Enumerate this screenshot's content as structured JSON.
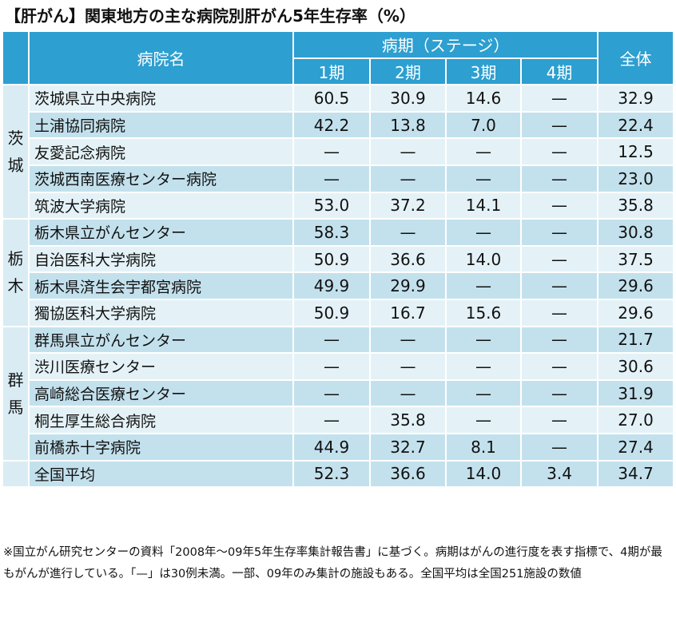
{
  "title": "【肝がん】関東地方の主な病院別肝がん5年生存率（%）",
  "header": {
    "hospital": "病院名",
    "stage_group": "病期（ステージ）",
    "stages": [
      "1期",
      "2期",
      "3期",
      "4期"
    ],
    "total": "全体"
  },
  "groups": [
    {
      "prefecture": [
        "茨",
        "城"
      ],
      "rows": [
        {
          "name": "茨城県立中央病院",
          "values": [
            "60.5",
            "30.9",
            "14.6",
            "—",
            "32.9"
          ]
        },
        {
          "name": "土浦協同病院",
          "values": [
            "42.2",
            "13.8",
            "7.0",
            "—",
            "22.4"
          ]
        },
        {
          "name": "友愛記念病院",
          "values": [
            "—",
            "—",
            "—",
            "—",
            "12.5"
          ]
        },
        {
          "name": "茨城西南医療センター病院",
          "values": [
            "—",
            "—",
            "—",
            "—",
            "23.0"
          ]
        },
        {
          "name": "筑波大学病院",
          "values": [
            "53.0",
            "37.2",
            "14.1",
            "—",
            "35.8"
          ]
        }
      ]
    },
    {
      "prefecture": [
        "栃",
        "木"
      ],
      "rows": [
        {
          "name": "栃木県立がんセンター",
          "values": [
            "58.3",
            "—",
            "—",
            "—",
            "30.8"
          ]
        },
        {
          "name": "自治医科大学病院",
          "values": [
            "50.9",
            "36.6",
            "14.0",
            "—",
            "37.5"
          ]
        },
        {
          "name": "栃木県済生会宇都宮病院",
          "values": [
            "49.9",
            "29.9",
            "—",
            "—",
            "29.6"
          ]
        },
        {
          "name": "獨協医科大学病院",
          "values": [
            "50.9",
            "16.7",
            "15.6",
            "—",
            "29.6"
          ]
        }
      ]
    },
    {
      "prefecture": [
        "群",
        "馬"
      ],
      "rows": [
        {
          "name": "群馬県立がんセンター",
          "values": [
            "—",
            "—",
            "—",
            "—",
            "21.7"
          ]
        },
        {
          "name": "渋川医療センター",
          "values": [
            "—",
            "—",
            "—",
            "—",
            "30.6"
          ]
        },
        {
          "name": "高崎総合医療センター",
          "values": [
            "—",
            "—",
            "—",
            "—",
            "31.9"
          ]
        },
        {
          "name": "桐生厚生総合病院",
          "values": [
            "—",
            "35.8",
            "—",
            "—",
            "27.0"
          ]
        },
        {
          "name": "前橋赤十字病院",
          "values": [
            "44.9",
            "32.7",
            "8.1",
            "—",
            "27.4"
          ]
        }
      ]
    }
  ],
  "national": {
    "name": "全国平均",
    "values": [
      "52.3",
      "36.6",
      "14.0",
      "3.4",
      "34.7"
    ]
  },
  "note": "※国立がん研究センターの資料「2008年～09年5年生存率集計報告書」に基づく。病期はがんの進行度を表す指標で、4期が最もがんが進行している。「—」は30例未満。一部、09年のみ集計の施設もある。全国平均は全国251施設の数値",
  "colors": {
    "header": "#2d9fd0",
    "row_light": "#e4f2f7",
    "row_dark": "#c3e1ed",
    "prefecture": "#d9ecf4"
  }
}
